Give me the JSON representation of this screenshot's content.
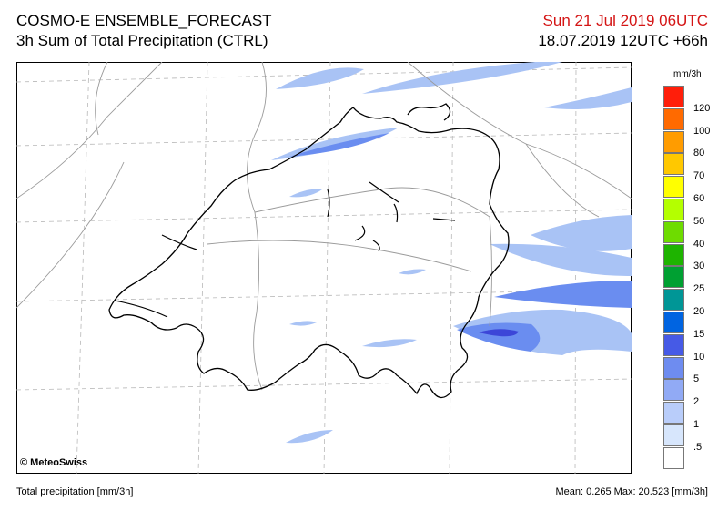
{
  "header": {
    "model": "COSMO-E ENSEMBLE_FORECAST",
    "product": "3h Sum of Total Precipitation (CTRL)",
    "valid_time": "Sun 21 Jul 2019 06UTC",
    "run_info": "18.07.2019 12UTC +66h"
  },
  "map": {
    "copyright": "© MeteoSwiss",
    "colors": {
      "border": "#000000",
      "region_border": "#9a9a9a",
      "grid": "#b8b8b8",
      "precip_light": "#a9c3f5",
      "precip_mid": "#6a8df0",
      "precip_heavy": "#3c46d8"
    }
  },
  "legend": {
    "unit": "mm/3h",
    "ticks": [
      "120",
      "100",
      "80",
      "70",
      "60",
      "50",
      "40",
      "30",
      "25",
      "20",
      "15",
      "10",
      "5",
      "2",
      "1",
      ".5"
    ],
    "colors": [
      "#ff1e0a",
      "#ff6a00",
      "#ff9c00",
      "#ffc800",
      "#ffff00",
      "#b4ff00",
      "#6edc00",
      "#1eb400",
      "#00a032",
      "#009696",
      "#0064e1",
      "#465ae6",
      "#6e8cf0",
      "#91aaf5",
      "#b9cdfa",
      "#d7e6fc",
      "#ffffff"
    ]
  },
  "footer": {
    "left": "Total precipitation [mm/3h]",
    "right": "Mean:   0.265 Max:  20.523 [mm/3h]"
  }
}
